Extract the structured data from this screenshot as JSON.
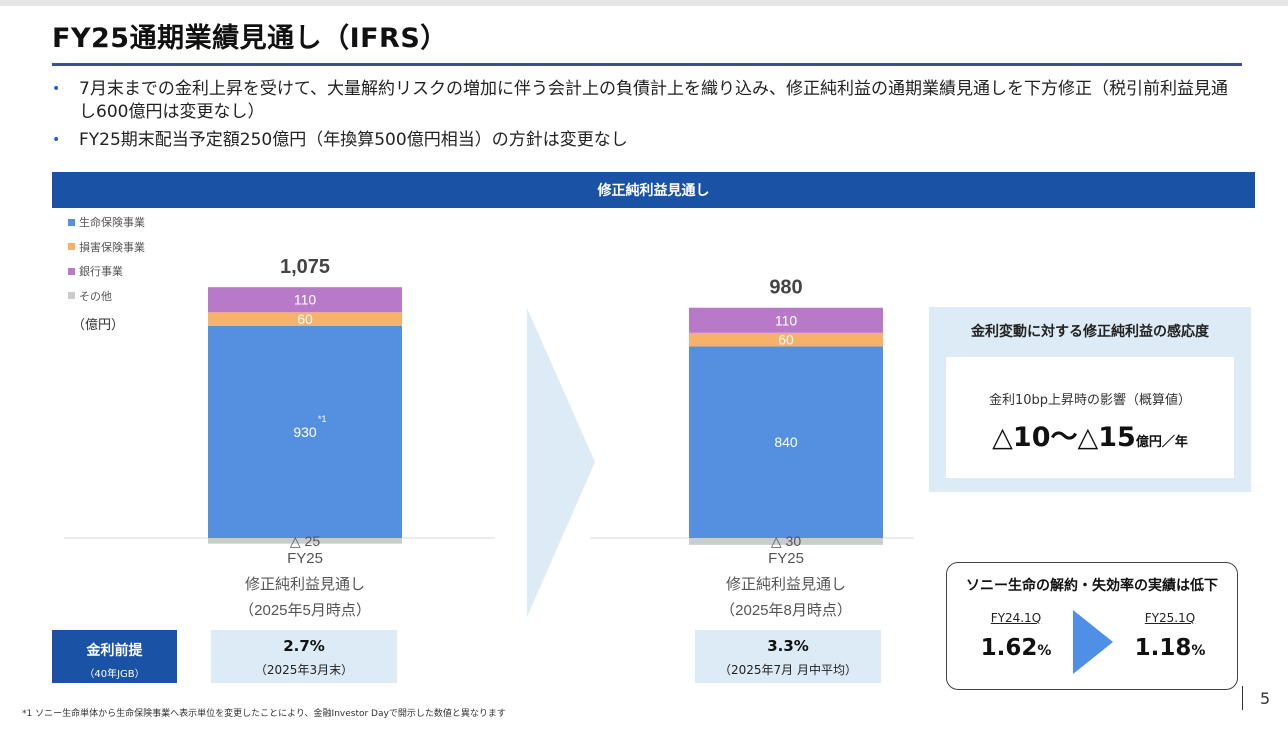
{
  "title": "FY25通期業績見通し（IFRS）",
  "bullets": [
    "7月末までの金利上昇を受けて、大量解約リスクの増加に伴う会計上の負債計上を織り込み、修正純利益の通期業績見通しを下方修正（税引前利益見通し600億円は変更なし）",
    "FY25期末配当予定額250億円（年換算500億円相当）の方針は変更なし"
  ],
  "banner": "修正純利益見通し",
  "legend": [
    {
      "label": "生命保険事業",
      "color": "#5590e0"
    },
    {
      "label": "損害保険事業",
      "color": "#f6b26b"
    },
    {
      "label": "銀行事業",
      "color": "#b879c9"
    },
    {
      "label": "その他",
      "color": "#cccccc"
    }
  ],
  "unit": "（億円）",
  "chart_data": {
    "type": "bar",
    "stacked": true,
    "categories": [
      {
        "lines": [
          "FY25",
          "修正純利益見通し",
          "（2025年5月時点）"
        ]
      },
      {
        "lines": [
          "FY25",
          "修正純利益見通し",
          "（2025年8月時点）"
        ]
      }
    ],
    "series": [
      {
        "name": "生命保険事業",
        "values": [
          930,
          840
        ],
        "labels": [
          "930",
          "840"
        ]
      },
      {
        "name": "損害保険事業",
        "values": [
          60,
          60
        ],
        "labels": [
          "60",
          "60"
        ]
      },
      {
        "name": "銀行事業",
        "values": [
          110,
          110
        ],
        "labels": [
          "110",
          "110"
        ]
      },
      {
        "name": "その他",
        "values": [
          -25,
          -30
        ],
        "labels": [
          "△ 25",
          "△ 30"
        ]
      }
    ],
    "totals": [
      "1,075",
      "980"
    ],
    "note_marker": "*1"
  },
  "sensitivity": {
    "title": "金利変動に対する修正純利益の感応度",
    "label": "金利10bp上昇時の影響（概算値）",
    "value": "△10～△15",
    "unit": "億円／年"
  },
  "lapse": {
    "title": "ソニー生命の解約・失効率の実績は低下",
    "from_period": "FY24.1Q",
    "from_value": "1.62",
    "to_period": "FY25.1Q",
    "to_value": "1.18",
    "pct": "%",
    "arrow_color": "#4f8fe6"
  },
  "premise": {
    "label": "金利前提",
    "sub": "（40年JGB）",
    "items": [
      {
        "rate": "2.7%",
        "date": "（2025年3月末）"
      },
      {
        "rate": "3.3%",
        "date": "（2025年7月 月中平均）"
      }
    ]
  },
  "footnote": "*1 ソニー生命単体から生命保険事業へ表示単位を変更したことにより、金融Investor Dayで開示した数値と異なります",
  "page_number": "5"
}
